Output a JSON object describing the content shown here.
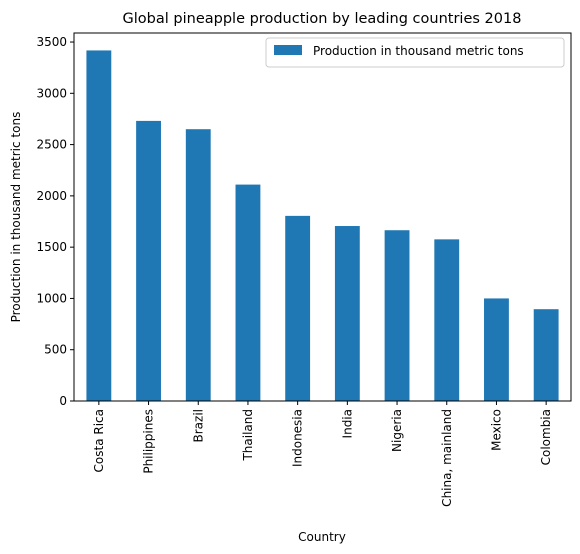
{
  "chart_data": {
    "type": "bar",
    "title": "Global pineapple production by leading countries 2018",
    "xlabel": "Country",
    "ylabel": "Production in thousand metric tons",
    "categories": [
      "Costa Rica",
      "Philippines",
      "Brazil",
      "Thailand",
      "Indonesia",
      "India",
      "Nigeria",
      "China, mainland",
      "Mexico",
      "Colombia"
    ],
    "series": [
      {
        "name": "Production in thousand metric tons",
        "color": "#1f77b4",
        "values": [
          3418,
          2731,
          2650,
          2110,
          1805,
          1706,
          1665,
          1576,
          1000,
          895
        ]
      }
    ],
    "ylim": [
      0,
      3588
    ],
    "yticks": [
      0,
      500,
      1000,
      1500,
      2000,
      2500,
      3000,
      3500
    ],
    "grid": false,
    "legend_position": "top-right"
  }
}
